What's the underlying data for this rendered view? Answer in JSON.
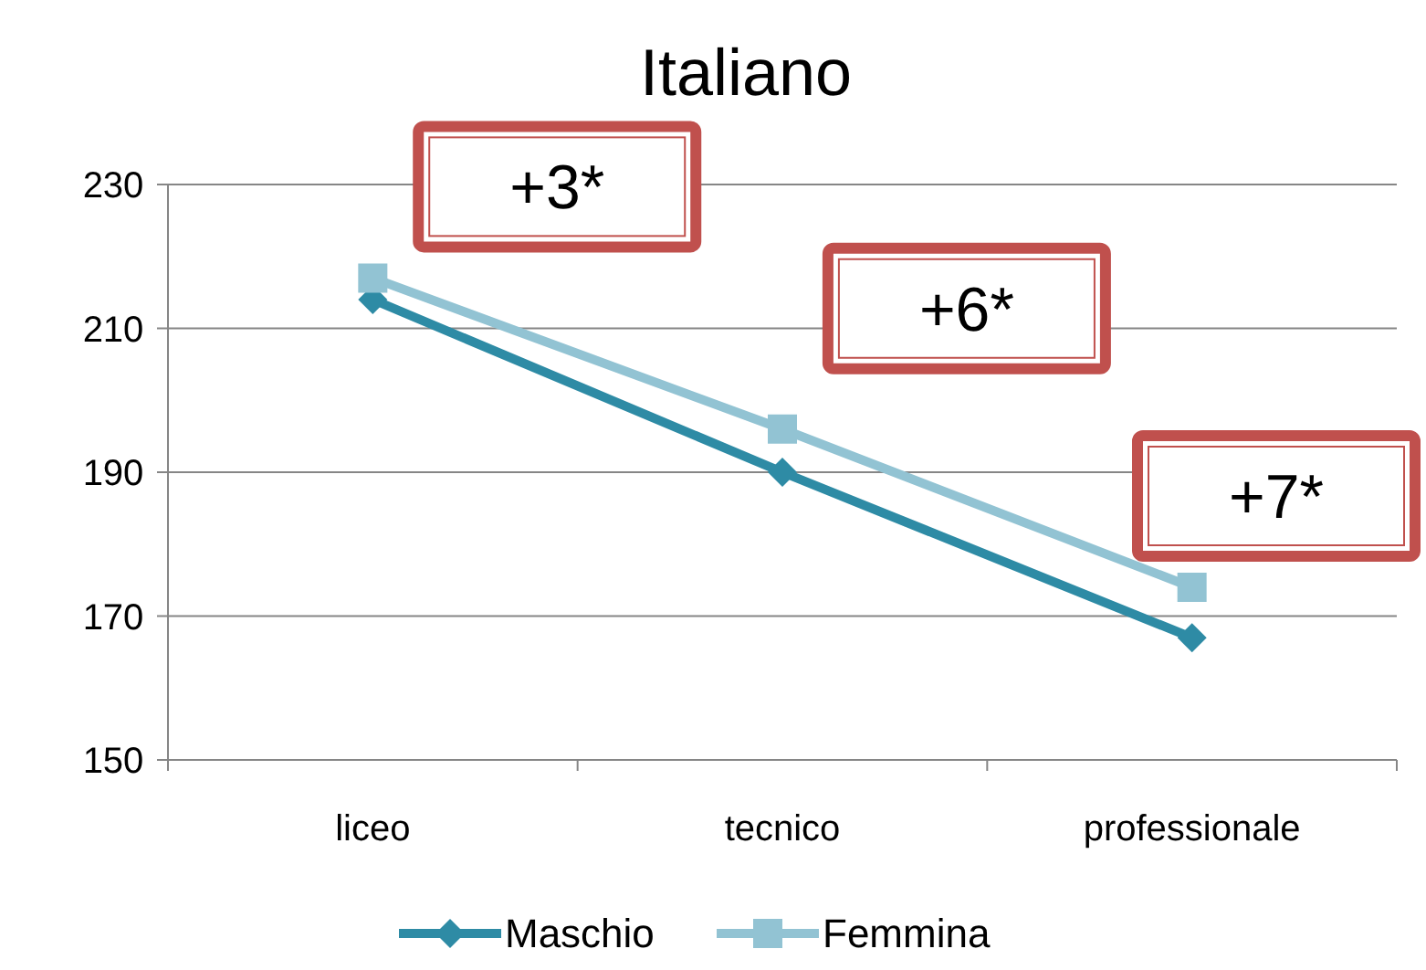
{
  "chart_data": {
    "type": "line",
    "title": "Italiano",
    "categories": [
      "liceo",
      "tecnico",
      "professionale"
    ],
    "series": [
      {
        "name": "Maschio",
        "color": "#2e8ba5",
        "marker": "diamond",
        "values": [
          214,
          190,
          167
        ]
      },
      {
        "name": "Femmina",
        "color": "#92c3d3",
        "marker": "square",
        "values": [
          217,
          196,
          174
        ]
      }
    ],
    "ylim": [
      150,
      230
    ],
    "yticks": [
      150,
      170,
      190,
      210,
      230
    ],
    "grid": "y",
    "legend": "bottom",
    "annotations": [
      "+3*",
      "+6*",
      "+7*"
    ]
  }
}
